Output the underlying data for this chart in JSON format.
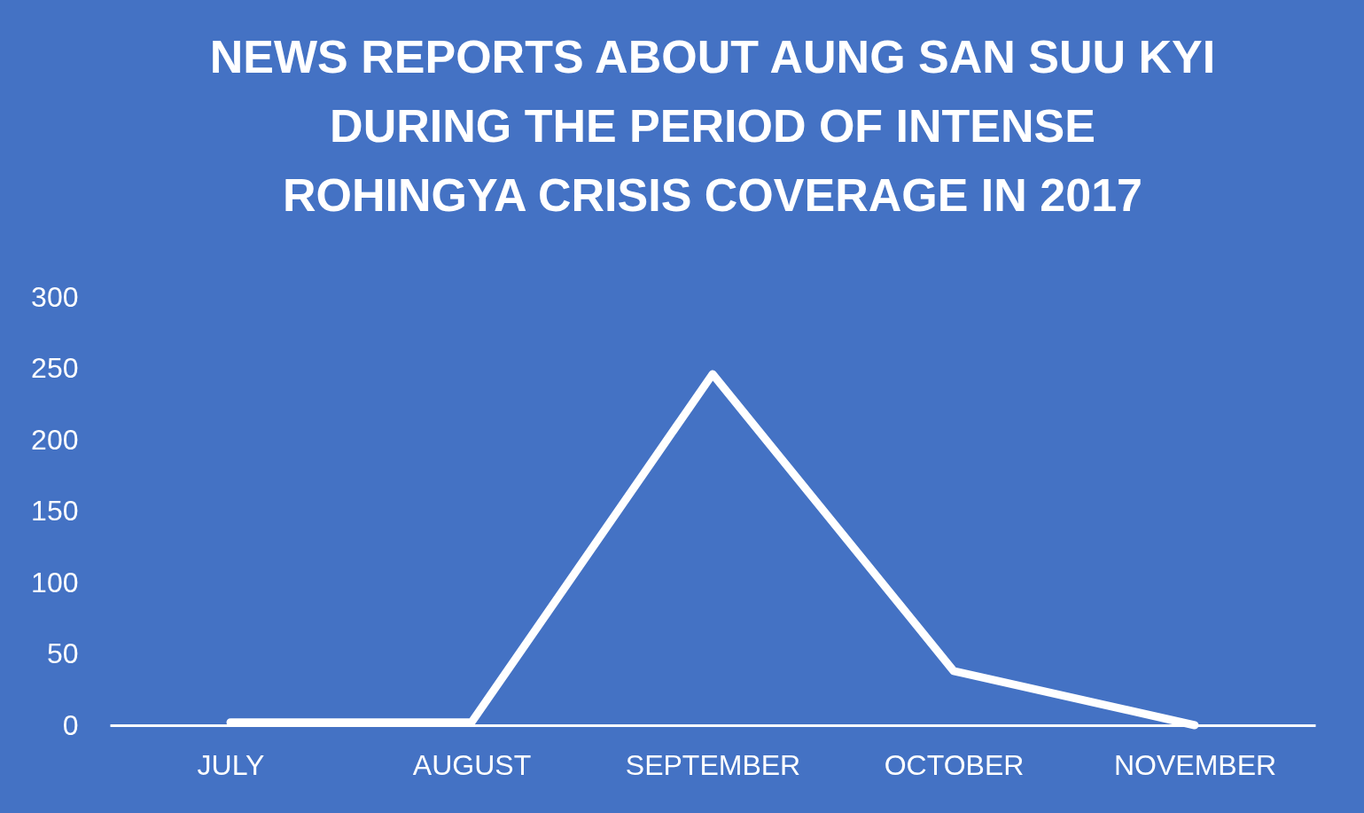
{
  "chart_data": {
    "type": "line",
    "title": "NEWS REPORTS ABOUT AUNG SAN SUU KYI DURING THE PERIOD OF INTENSE ROHINGYA CRISIS COVERAGE IN 2017",
    "categories": [
      "JULY",
      "AUGUST",
      "SEPTEMBER",
      "OCTOBER",
      "NOVEMBER"
    ],
    "series": [
      {
        "color": "#ffffff",
        "values": [
          2,
          2,
          246,
          38,
          0
        ]
      }
    ],
    "ylim": [
      0,
      300
    ],
    "yticks": [
      0,
      50,
      100,
      150,
      200,
      250,
      300
    ],
    "grid": false,
    "legend": false,
    "marker": "none",
    "line_style": "solid"
  }
}
